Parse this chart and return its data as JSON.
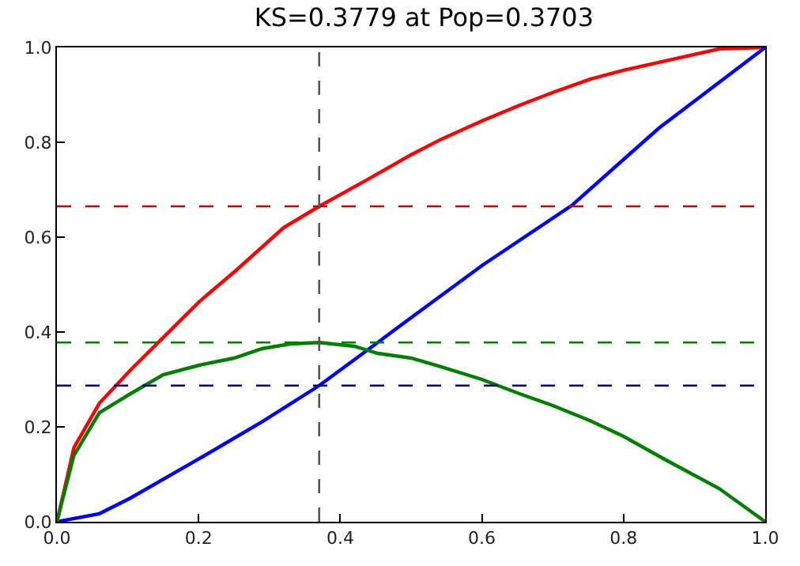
{
  "chart_data": {
    "type": "line",
    "title": "KS=0.3779 at Pop=0.3703",
    "series": [
      {
        "color": "#ff0000",
        "x": [
          0,
          0.024,
          0.06,
          0.104,
          0.164,
          0.201,
          0.253,
          0.32,
          0.3703,
          0.439,
          0.498,
          0.542,
          0.6,
          0.653,
          0.7,
          0.753,
          0.8,
          0.86,
          0.935,
          1
        ],
        "values": [
          0,
          0.156,
          0.25,
          0.32,
          0.409,
          0.464,
          0.53,
          0.62,
          0.665,
          0.722,
          0.772,
          0.806,
          0.845,
          0.878,
          0.905,
          0.933,
          0.952,
          0.972,
          0.997,
          1
        ]
      },
      {
        "color": "#0000ff",
        "x": [
          0,
          0.06,
          0.104,
          0.201,
          0.29,
          0.3703,
          0.453,
          0.498,
          0.6,
          0.727,
          0.85,
          1
        ],
        "values": [
          0,
          0.017,
          0.05,
          0.133,
          0.211,
          0.287,
          0.378,
          0.428,
          0.54,
          0.667,
          0.83,
          1
        ]
      },
      {
        "color": "#008000",
        "x": [
          0,
          0.024,
          0.06,
          0.104,
          0.15,
          0.201,
          0.25,
          0.29,
          0.33,
          0.3703,
          0.42,
          0.453,
          0.5,
          0.542,
          0.6,
          0.653,
          0.7,
          0.753,
          0.8,
          0.86,
          0.935,
          1
        ],
        "values": [
          0,
          0.14,
          0.23,
          0.27,
          0.31,
          0.33,
          0.345,
          0.365,
          0.375,
          0.378,
          0.37,
          0.355,
          0.345,
          0.327,
          0.3,
          0.27,
          0.245,
          0.213,
          0.18,
          0.13,
          0.07,
          0
        ]
      }
    ],
    "xlim": [
      0,
      1
    ],
    "ylim": [
      0,
      1
    ],
    "xticks": [
      {
        "value": 0,
        "label": "0.0"
      },
      0.2,
      0.4,
      0.6,
      0.8,
      {
        "value": 1,
        "label": "1.0"
      }
    ],
    "yticks": [
      {
        "value": 0,
        "label": "0.0"
      },
      0.2,
      0.4,
      0.6,
      0.8,
      {
        "value": 1,
        "label": "1.0"
      }
    ],
    "ref_lines": [
      {
        "axis": "y",
        "value": 0.665,
        "color": "#cc0000",
        "line_style": "dashed"
      },
      {
        "axis": "y",
        "value": 0.378,
        "color": "#008000",
        "line_style": "dashed"
      },
      {
        "axis": "y",
        "value": 0.287,
        "color": "#000080",
        "line_style": "dashed"
      },
      {
        "axis": "x",
        "value": 0.3703,
        "color": "#555555",
        "line_style": "dashed"
      }
    ],
    "grid": false,
    "line_style": "solid",
    "marker": "none"
  }
}
